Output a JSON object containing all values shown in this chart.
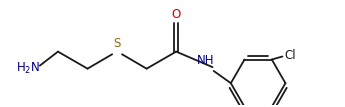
{
  "background": "#ffffff",
  "line_color": "#1a1a1a",
  "line_width": 1.3,
  "font_size_atom": 8.5,
  "O_color": "#cc0000",
  "N_color": "#000080",
  "S_color": "#8B6914",
  "Cl_color": "#1a1a1a",
  "figsize": [
    3.45,
    1.07
  ],
  "dpi": 100,
  "xlim": [
    -0.3,
    8.8
  ],
  "ylim": [
    0.2,
    2.9
  ]
}
